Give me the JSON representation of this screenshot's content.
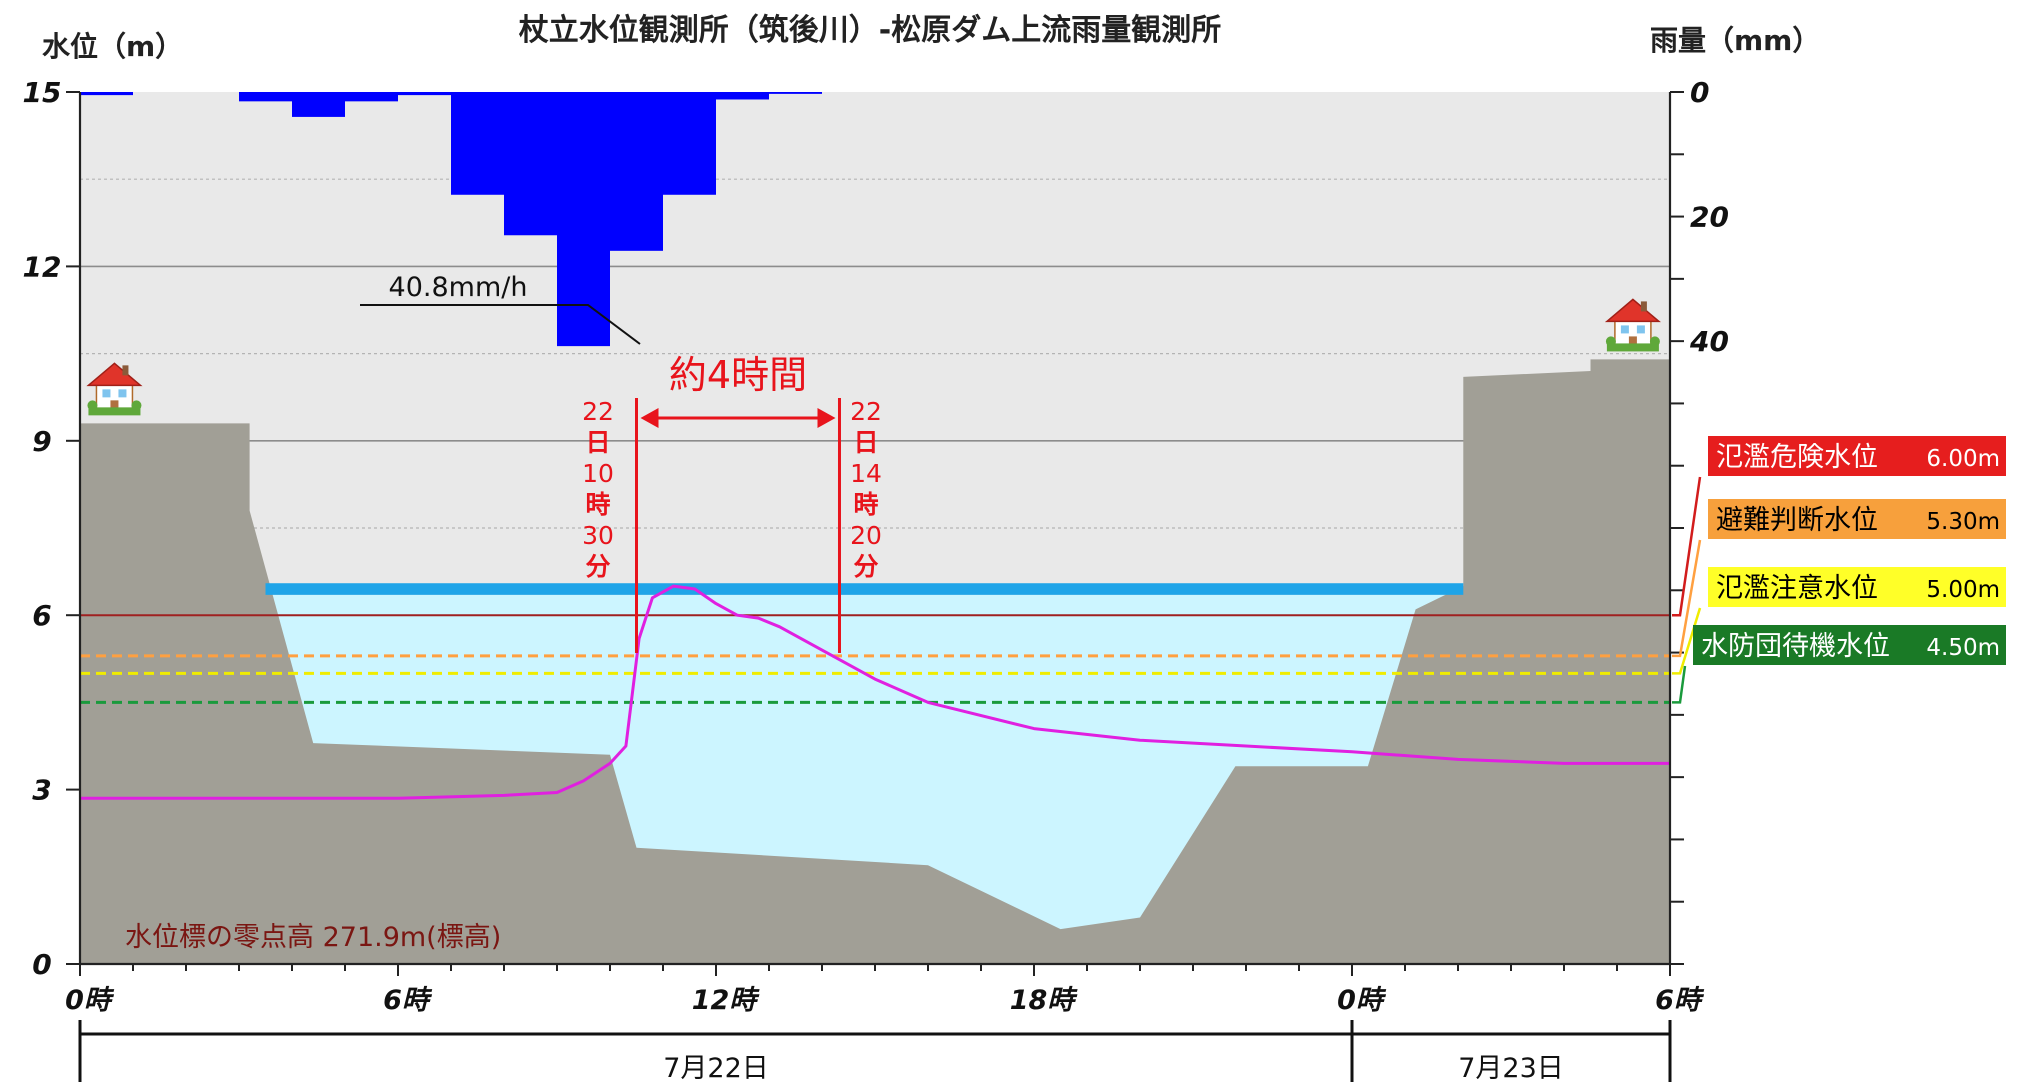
{
  "chart_data": {
    "type": "combo",
    "title": "杖立水位観測所（筑後川）-松原ダム上流雨量観測所",
    "y_left_label": "水位（m）",
    "y_right_label": "雨量（mm）",
    "y_left_ticks": [
      "15",
      "12",
      "9",
      "6",
      "3",
      "0"
    ],
    "y_right_ticks": [
      "0",
      "20",
      "40"
    ],
    "x_ticks": [
      "0時",
      "6時",
      "12時",
      "18時",
      "0時",
      "6時"
    ],
    "dates": [
      "7月22日",
      "7月23日"
    ],
    "ylim_left": [
      0,
      15
    ],
    "ylim_right": [
      0,
      140
    ],
    "grid": true,
    "rainfall_mm_per_hour": [
      {
        "hour": 1,
        "value": 0.5
      },
      {
        "hour": 4,
        "value": 1.5
      },
      {
        "hour": 5,
        "value": 4
      },
      {
        "hour": 6,
        "value": 1.5
      },
      {
        "hour": 7,
        "value": 0.5
      },
      {
        "hour": 8,
        "value": 16.5
      },
      {
        "hour": 9,
        "value": 23
      },
      {
        "hour": 10,
        "value": 40.8
      },
      {
        "hour": 11,
        "value": 25.5
      },
      {
        "hour": 12,
        "value": 16.5
      },
      {
        "hour": 13,
        "value": 1.2
      },
      {
        "hour": 14,
        "value": 0.3
      }
    ],
    "water_level_m": [
      [
        0,
        2.85
      ],
      [
        3,
        2.85
      ],
      [
        6,
        2.85
      ],
      [
        8,
        2.9
      ],
      [
        9,
        2.95
      ],
      [
        9.5,
        3.15
      ],
      [
        10,
        3.45
      ],
      [
        10.3,
        3.75
      ],
      [
        10.55,
        5.6
      ],
      [
        10.8,
        6.3
      ],
      [
        11.2,
        6.5
      ],
      [
        11.6,
        6.45
      ],
      [
        12,
        6.2
      ],
      [
        12.4,
        6.0
      ],
      [
        12.8,
        5.95
      ],
      [
        13.2,
        5.8
      ],
      [
        14,
        5.4
      ],
      [
        15,
        4.9
      ],
      [
        16,
        4.5
      ],
      [
        18,
        4.05
      ],
      [
        20,
        3.85
      ],
      [
        22,
        3.75
      ],
      [
        24,
        3.65
      ],
      [
        26,
        3.52
      ],
      [
        28,
        3.45
      ],
      [
        30,
        3.45
      ]
    ],
    "thresholds": [
      {
        "name": "氾濫危険水位",
        "value_text": "6.00m",
        "level": 6.0,
        "color": "#a02020",
        "label_bg": "#e61e1e",
        "label_color": "#ffffff"
      },
      {
        "name": "避難判断水位",
        "value_text": "5.30m",
        "level": 5.3,
        "color": "#ffa040",
        "label_bg": "#f7a03c",
        "label_color": "#000000"
      },
      {
        "name": "氾濫注意水位",
        "value_text": "5.00m",
        "level": 5.0,
        "color": "#f0ec00",
        "label_bg": "#ffff28",
        "label_color": "#000000"
      },
      {
        "name": "水防団待機水位",
        "value_text": "4.50m",
        "level": 4.5,
        "color": "#1a9a3c",
        "label_bg": "#1a7a26",
        "label_color": "#ffffff"
      }
    ],
    "peak_rain_label": "40.8mm/h",
    "duration_label": "約4時間",
    "start_time_chars": [
      "22",
      "日",
      "10",
      "時",
      "30",
      "分"
    ],
    "end_time_chars": [
      "22",
      "日",
      "14",
      "時",
      "20",
      "分"
    ],
    "start_hour": 10.5,
    "end_hour": 14.33,
    "zero_point_label": "水位標の零点高 271.9m(標高)"
  },
  "colors": {
    "rain": "#0000ff",
    "water_line": "#e020e0",
    "river_fill": "#ccf5ff",
    "water_surface": "#1fa4e8",
    "ground": "#a19f96",
    "plot_bg": "#e9e9e9",
    "annotation": "#e8141c"
  },
  "icons": [
    "house-icon"
  ]
}
